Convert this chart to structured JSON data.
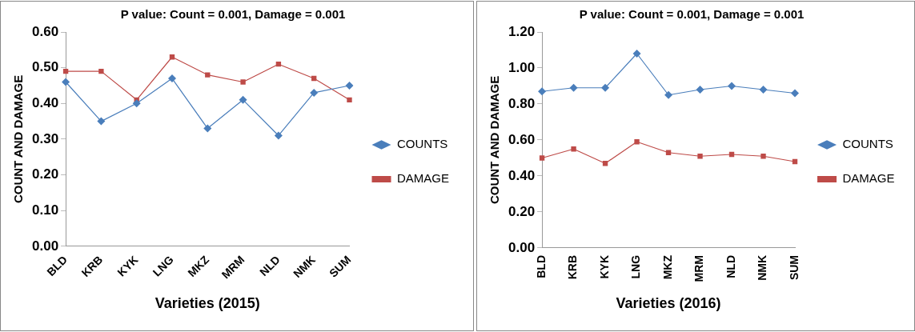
{
  "chart_data": [
    {
      "type": "line",
      "title": "P value: Count = 0.001, Damage = 0.001",
      "xlabel": "Varieties (2015)",
      "ylabel": "COUNT AND DAMAGE",
      "categories": [
        "BLD",
        "KRB",
        "KYK",
        "LNG",
        "MKZ",
        "MRM",
        "NLD",
        "NMK",
        "SUM"
      ],
      "series": [
        {
          "name": "COUNTS",
          "color": "#4a7ebb",
          "marker": "diamond",
          "values": [
            0.46,
            0.35,
            0.4,
            0.47,
            0.33,
            0.41,
            0.31,
            0.43,
            0.45
          ]
        },
        {
          "name": "DAMAGE",
          "color": "#be4b48",
          "marker": "square",
          "values": [
            0.49,
            0.49,
            0.41,
            0.53,
            0.48,
            0.46,
            0.51,
            0.47,
            0.41
          ]
        }
      ],
      "ylim": [
        0,
        0.6
      ],
      "yticks": [
        {
          "value": 0,
          "label": "0.00"
        },
        {
          "value": 0.1,
          "label": "0.10"
        },
        {
          "value": 0.2,
          "label": "0.20"
        },
        {
          "value": 0.3,
          "label": "0.30"
        },
        {
          "value": 0.4,
          "label": "0.40"
        },
        {
          "value": 0.5,
          "label": "0.50"
        },
        {
          "value": 0.6,
          "label": "0.60"
        }
      ],
      "grid": false,
      "legend": "right"
    },
    {
      "type": "line",
      "title": "P value: Count = 0.001, Damage = 0.001",
      "xlabel": "Varieties (2016)",
      "ylabel": "COUNT AND DAMAGE",
      "categories": [
        "BLD",
        "KRB",
        "KYK",
        "LNG",
        "MKZ",
        "MRM",
        "NLD",
        "NMK",
        "SUM"
      ],
      "series": [
        {
          "name": "COUNTS",
          "color": "#4a7ebb",
          "marker": "diamond",
          "values": [
            0.87,
            0.89,
            0.89,
            1.08,
            0.85,
            0.88,
            0.9,
            0.88,
            0.86
          ]
        },
        {
          "name": "DAMAGE",
          "color": "#be4b48",
          "marker": "square",
          "values": [
            0.5,
            0.55,
            0.47,
            0.59,
            0.53,
            0.51,
            0.52,
            0.51,
            0.48
          ]
        }
      ],
      "ylim": [
        0,
        1.2
      ],
      "yticks": [
        {
          "value": 0,
          "label": "0.00"
        },
        {
          "value": 0.2,
          "label": "0.20"
        },
        {
          "value": 0.4,
          "label": "0.40"
        },
        {
          "value": 0.6,
          "label": "0.60"
        },
        {
          "value": 0.8,
          "label": "0.80"
        },
        {
          "value": 1.0,
          "label": "1.00"
        },
        {
          "value": 1.2,
          "label": "1.20"
        }
      ],
      "grid": false,
      "legend": "right"
    }
  ]
}
